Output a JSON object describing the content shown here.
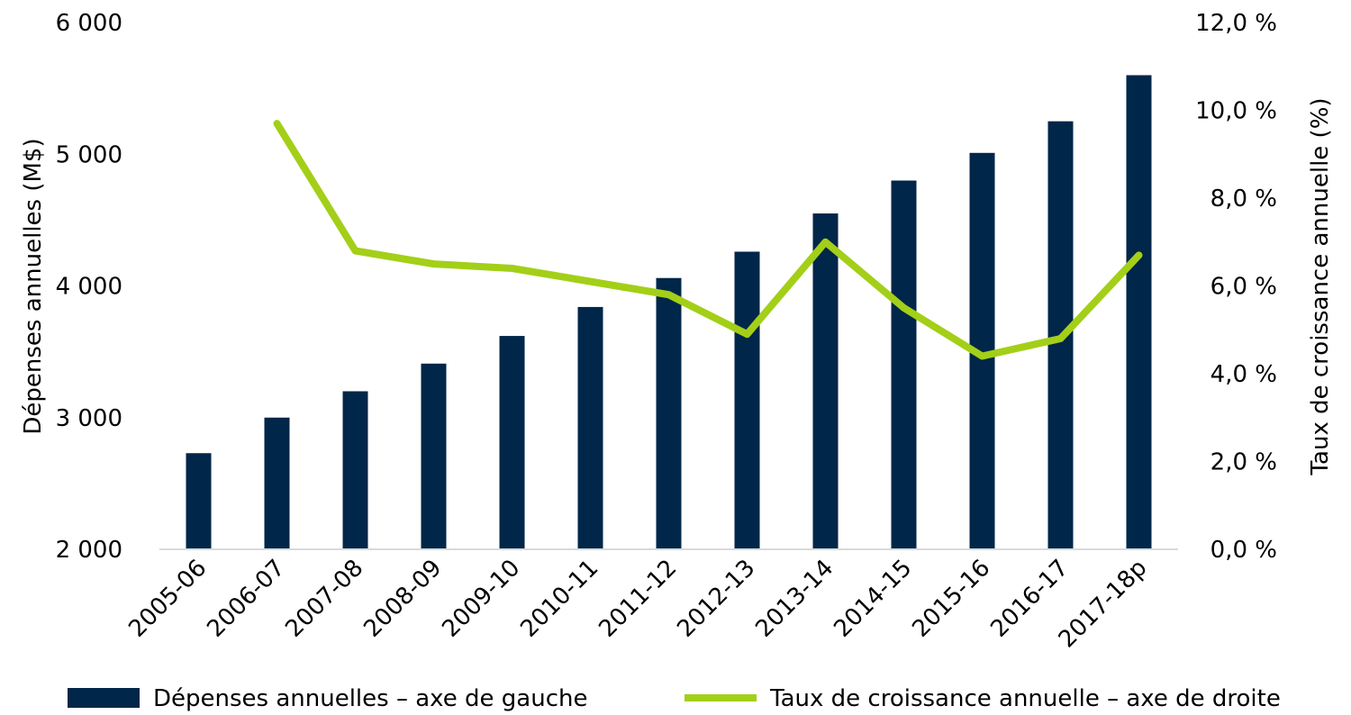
{
  "chart_data": {
    "type": "bar",
    "categories": [
      "2005-06",
      "2006-07",
      "2007-08",
      "2008-09",
      "2009-10",
      "2010-11",
      "2011-12",
      "2012-13",
      "2013-14",
      "2014-15",
      "2015-16",
      "2016-17",
      "2017-18p"
    ],
    "series": [
      {
        "name": "Dépenses annuelles – axe de gauche",
        "type": "bar",
        "axis": "left",
        "color": "#002649",
        "values": [
          2730,
          3000,
          3200,
          3410,
          3620,
          3840,
          4060,
          4260,
          4550,
          4800,
          5010,
          5250,
          5600
        ]
      },
      {
        "name": "Taux de croissance annuelle – axe de droite",
        "type": "line",
        "axis": "right",
        "color": "#a3cf18",
        "values": [
          null,
          9.7,
          6.8,
          6.5,
          6.4,
          6.1,
          5.8,
          4.9,
          7.0,
          5.5,
          4.4,
          4.8,
          6.7
        ]
      }
    ],
    "ylabel": "Dépenses annuelles (M$)",
    "ylabel_right": "Taux de croissance annuelle (%)",
    "ylim": [
      2000,
      6000
    ],
    "ylim_right": [
      0,
      12
    ],
    "yticks": [
      "2 000",
      "3 000",
      "4 000",
      "5 000",
      "6 000"
    ],
    "yticks_right": [
      "0,0 %",
      "2,0 %",
      "4,0 %",
      "6,0 %",
      "8,0 %",
      "10,0 %",
      "12,0 %"
    ],
    "grid": false,
    "legend_position": "bottom"
  }
}
